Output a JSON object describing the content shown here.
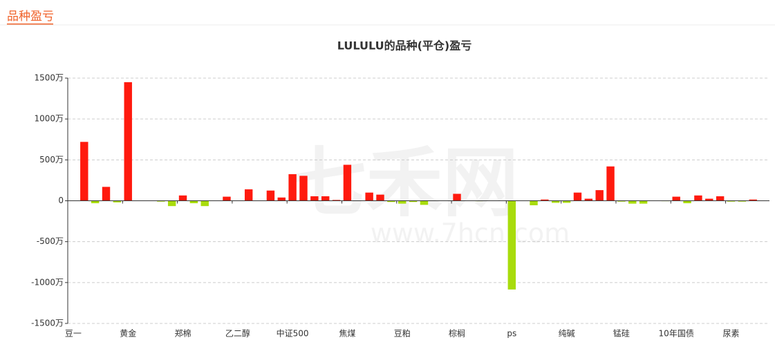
{
  "header": {
    "title": "品种盈亏"
  },
  "watermark": {
    "text": "七禾网",
    "url": "www.7hcn.com"
  },
  "chart_data": {
    "type": "bar",
    "title": "LULULU的品种(平仓)盈亏",
    "categories": [
      "豆一",
      null,
      null,
      null,
      null,
      "黄金",
      null,
      null,
      null,
      null,
      "郑棉",
      null,
      null,
      null,
      null,
      "乙二醇",
      null,
      null,
      null,
      null,
      "中证500",
      null,
      null,
      null,
      null,
      "焦煤",
      null,
      null,
      null,
      null,
      "豆粕",
      null,
      null,
      null,
      null,
      "棕榈",
      null,
      null,
      null,
      null,
      "ps",
      null,
      null,
      null,
      null,
      "纯碱",
      null,
      null,
      null,
      null,
      "锰硅",
      null,
      null,
      null,
      null,
      "10年国债",
      null,
      null,
      null,
      null,
      "尿素",
      null,
      null,
      null
    ],
    "values": [
      3,
      720,
      -30,
      170,
      -20,
      1450,
      0,
      0,
      -10,
      -65,
      65,
      -30,
      -65,
      0,
      50,
      0,
      140,
      0,
      125,
      40,
      325,
      305,
      55,
      55,
      10,
      440,
      0,
      100,
      75,
      -15,
      -35,
      -15,
      -50,
      0,
      0,
      85,
      0,
      -5,
      0,
      0,
      -1085,
      0,
      -55,
      15,
      -25,
      -25,
      100,
      25,
      130,
      420,
      -10,
      -35,
      -35,
      0,
      -5,
      50,
      -30,
      65,
      25,
      55,
      -10,
      -10,
      15,
      0
    ],
    "positive_color": "#ff1a0e",
    "negative_color": "#a8dc0c",
    "ylim": [
      -1500,
      1500
    ],
    "yticks": [
      {
        "value": -1500,
        "label": "-1500万"
      },
      {
        "value": -1000,
        "label": "-1000万"
      },
      {
        "value": -500,
        "label": "-500万"
      },
      0,
      {
        "value": 500,
        "label": "500万"
      },
      {
        "value": 1000,
        "label": "1000万"
      },
      {
        "value": 1500,
        "label": "1500万"
      }
    ],
    "grid": true
  }
}
